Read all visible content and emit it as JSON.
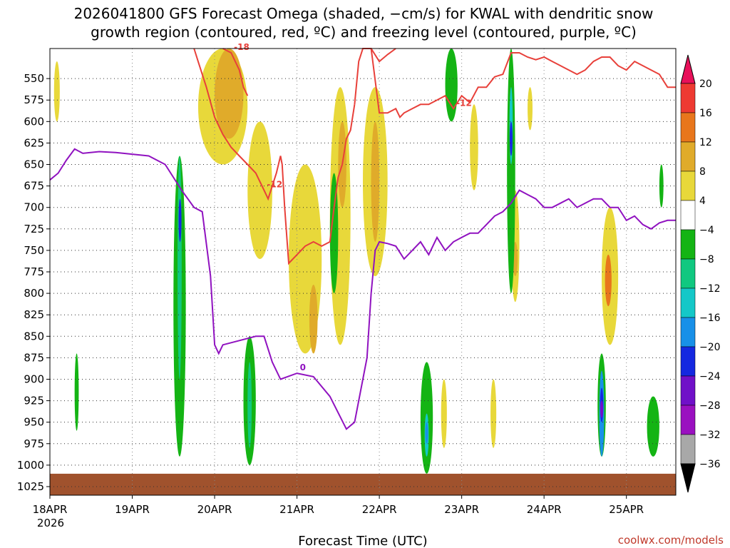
{
  "chart_data": {
    "type": "heatmap",
    "title_line1": "2026041800 GFS Forecast Omega (shaded, −cm/s) for KWAL with dendritic snow",
    "title_line2": "growth region (contoured, red, ºC) and freezing level (contoured, purple, ºC)",
    "xlabel": "Forecast Time (UTC)",
    "credit": "coolwx.com/models",
    "x_ticks": [
      "18APR",
      "19APR",
      "20APR",
      "21APR",
      "22APR",
      "23APR",
      "24APR",
      "25APR"
    ],
    "x_year": "2026",
    "xlim_days": [
      0,
      7.6
    ],
    "y_ticks": [
      550,
      575,
      600,
      625,
      650,
      675,
      700,
      725,
      750,
      775,
      800,
      825,
      850,
      875,
      900,
      925,
      950,
      975,
      1000,
      1025
    ],
    "ylim_hpa": [
      515,
      1035
    ],
    "colorbar": {
      "labels": [
        "20",
        "16",
        "12",
        "8",
        "4",
        "−4",
        "−8",
        "−12",
        "−16",
        "−20",
        "−24",
        "−28",
        "−32",
        "−36"
      ],
      "colors": [
        "#e8105a",
        "#ee3a32",
        "#e8761c",
        "#e0ab2a",
        "#e8d83a",
        "#ffffff",
        "#14b414",
        "#10c880",
        "#14c8c8",
        "#1890e8",
        "#1428e0",
        "#7010c8",
        "#9a10c0",
        "#a8a8a8",
        "#000000"
      ]
    },
    "series": [
      {
        "name": "freezing level 0ºC",
        "color": "#9012c0",
        "label": "0",
        "x": [
          0,
          0.1,
          0.2,
          0.3,
          0.4,
          0.6,
          0.8,
          1.0,
          1.2,
          1.4,
          1.6,
          1.75,
          1.85,
          1.95,
          2.0,
          2.05,
          2.1,
          2.3,
          2.5,
          2.6,
          2.7,
          2.8,
          3.0,
          3.2,
          3.4,
          3.6,
          3.7,
          3.8,
          3.85,
          3.9,
          3.95,
          4.0,
          4.1,
          4.2,
          4.3,
          4.5,
          4.6,
          4.7,
          4.8,
          4.9,
          5.0,
          5.1,
          5.2,
          5.3,
          5.4,
          5.5,
          5.6,
          5.7,
          5.8,
          5.9,
          6.0,
          6.1,
          6.2,
          6.3,
          6.4,
          6.5,
          6.6,
          6.7,
          6.8,
          6.9,
          7.0,
          7.1,
          7.2,
          7.3,
          7.4,
          7.5,
          7.6
        ],
        "values": [
          668,
          660,
          645,
          632,
          637,
          635,
          636,
          638,
          640,
          650,
          680,
          700,
          705,
          780,
          860,
          870,
          860,
          855,
          850,
          850,
          880,
          900,
          893,
          897,
          920,
          958,
          950,
          900,
          875,
          800,
          750,
          740,
          742,
          745,
          760,
          740,
          755,
          735,
          750,
          740,
          735,
          730,
          730,
          720,
          710,
          705,
          695,
          680,
          685,
          690,
          700,
          700,
          695,
          690,
          700,
          695,
          690,
          690,
          700,
          700,
          715,
          710,
          720,
          725,
          718,
          715,
          715
        ]
      },
      {
        "name": "dendritic growth left branch -12ºC",
        "color": "#e8403a",
        "label": "-12",
        "x": [
          1.75,
          1.8,
          1.9,
          2.0,
          2.1,
          2.2,
          2.3,
          2.4,
          2.5,
          2.6,
          2.65,
          2.75,
          2.8,
          2.82,
          2.85,
          2.9,
          3.0,
          3.1,
          3.2,
          3.3,
          3.4,
          3.45,
          3.5,
          3.55,
          3.6,
          3.65,
          3.7
        ],
        "values": [
          515,
          530,
          560,
          595,
          615,
          630,
          640,
          650,
          660,
          680,
          690,
          660,
          640,
          650,
          700,
          765,
          755,
          745,
          740,
          745,
          740,
          700,
          665,
          650,
          620,
          610,
          580
        ]
      },
      {
        "name": "dendritic growth upper branch -12ºC",
        "color": "#e8403a",
        "label": "-12",
        "x": [
          3.7,
          3.75,
          3.8,
          3.9,
          4.0,
          4.1,
          4.2,
          4.25,
          4.3,
          4.4,
          4.5,
          4.6,
          4.7,
          4.8,
          4.9,
          5.0,
          5.1,
          5.2,
          5.3,
          5.4,
          5.5,
          5.6,
          5.7,
          5.8,
          5.9,
          6.0,
          6.1,
          6.2,
          6.3,
          6.4,
          6.5,
          6.6,
          6.7,
          6.8,
          6.9,
          7.0,
          7.1,
          7.2,
          7.3,
          7.4,
          7.5,
          7.6
        ],
        "values": [
          580,
          530,
          515,
          515,
          590,
          590,
          585,
          595,
          590,
          585,
          580,
          580,
          575,
          570,
          585,
          570,
          578,
          560,
          560,
          548,
          545,
          520,
          520,
          525,
          528,
          525,
          530,
          535,
          540,
          545,
          540,
          530,
          525,
          525,
          535,
          540,
          530,
          535,
          540,
          545,
          560,
          560
        ]
      },
      {
        "name": "dendritic growth -18ºC",
        "color": "#e8403a",
        "label": "-18",
        "x": [
          2.1,
          2.2,
          2.3,
          2.35,
          2.4
        ],
        "values": [
          515,
          520,
          540,
          560,
          570
        ]
      },
      {
        "name": "dendritic growth small branch -12ºC",
        "color": "#e8403a",
        "label": "",
        "x": [
          3.9,
          4.0,
          4.1,
          4.2
        ],
        "values": [
          515,
          530,
          522,
          515
        ]
      }
    ],
    "omega_regions": [
      {
        "level": "4",
        "x0": 0.05,
        "x1": 0.12,
        "p0": 530,
        "p1": 600
      },
      {
        "level": "4",
        "x0": 1.8,
        "x1": 2.4,
        "p0": 515,
        "p1": 650
      },
      {
        "level": "8",
        "x0": 2.0,
        "x1": 2.35,
        "p0": 515,
        "p1": 620
      },
      {
        "level": "4",
        "x0": 2.4,
        "x1": 2.7,
        "p0": 600,
        "p1": 760
      },
      {
        "level": "4",
        "x0": 2.9,
        "x1": 3.3,
        "p0": 650,
        "p1": 870
      },
      {
        "level": "8",
        "x0": 3.15,
        "x1": 3.25,
        "p0": 790,
        "p1": 870
      },
      {
        "level": "4",
        "x0": 3.4,
        "x1": 3.65,
        "p0": 560,
        "p1": 860
      },
      {
        "level": "8",
        "x0": 3.5,
        "x1": 3.6,
        "p0": 600,
        "p1": 700
      },
      {
        "level": "4",
        "x0": 3.8,
        "x1": 4.1,
        "p0": 560,
        "p1": 780
      },
      {
        "level": "8",
        "x0": 3.9,
        "x1": 4.0,
        "p0": 600,
        "p1": 740
      },
      {
        "level": "4",
        "x0": 5.1,
        "x1": 5.2,
        "p0": 580,
        "p1": 680
      },
      {
        "level": "4",
        "x0": 5.6,
        "x1": 5.7,
        "p0": 680,
        "p1": 810
      },
      {
        "level": "8",
        "x0": 5.62,
        "x1": 5.68,
        "p0": 740,
        "p1": 780
      },
      {
        "level": "4",
        "x0": 5.8,
        "x1": 5.86,
        "p0": 560,
        "p1": 610
      },
      {
        "level": "4",
        "x0": 6.7,
        "x1": 6.9,
        "p0": 700,
        "p1": 860
      },
      {
        "level": "12",
        "x0": 6.74,
        "x1": 6.82,
        "p0": 755,
        "p1": 815
      },
      {
        "level": "4",
        "x0": 5.35,
        "x1": 5.42,
        "p0": 900,
        "p1": 980
      },
      {
        "level": "4",
        "x0": 4.75,
        "x1": 4.82,
        "p0": 900,
        "p1": 980
      },
      {
        "level": "-4",
        "x0": 1.5,
        "x1": 1.65,
        "p0": 640,
        "p1": 990
      },
      {
        "level": "-8",
        "x0": 1.55,
        "x1": 1.6,
        "p0": 640,
        "p1": 900
      },
      {
        "level": "-24",
        "x0": 1.57,
        "x1": 1.59,
        "p0": 690,
        "p1": 740
      },
      {
        "level": "-4",
        "x0": 0.3,
        "x1": 0.35,
        "p0": 870,
        "p1": 960
      },
      {
        "level": "-4",
        "x0": 2.35,
        "x1": 2.5,
        "p0": 850,
        "p1": 1000
      },
      {
        "level": "-8",
        "x0": 2.4,
        "x1": 2.45,
        "p0": 880,
        "p1": 980
      },
      {
        "level": "-4",
        "x0": 4.5,
        "x1": 4.65,
        "p0": 880,
        "p1": 1010
      },
      {
        "level": "-12",
        "x0": 4.55,
        "x1": 4.6,
        "p0": 940,
        "p1": 990
      },
      {
        "level": "-16",
        "x0": 4.56,
        "x1": 4.59,
        "p0": 950,
        "p1": 975
      },
      {
        "level": "-4",
        "x0": 5.55,
        "x1": 5.65,
        "p0": 515,
        "p1": 800
      },
      {
        "level": "-12",
        "x0": 5.58,
        "x1": 5.62,
        "p0": 560,
        "p1": 650
      },
      {
        "level": "-20",
        "x0": 5.59,
        "x1": 5.61,
        "p0": 600,
        "p1": 640
      },
      {
        "level": "-4",
        "x0": 6.65,
        "x1": 6.75,
        "p0": 870,
        "p1": 990
      },
      {
        "level": "-16",
        "x0": 6.67,
        "x1": 6.73,
        "p0": 890,
        "p1": 990
      },
      {
        "level": "-24",
        "x0": 6.68,
        "x1": 6.72,
        "p0": 910,
        "p1": 950
      },
      {
        "level": "-28",
        "x0": 6.69,
        "x1": 6.71,
        "p0": 925,
        "p1": 945
      },
      {
        "level": "-4",
        "x0": 7.25,
        "x1": 7.4,
        "p0": 920,
        "p1": 990
      },
      {
        "level": "-4",
        "x0": 7.4,
        "x1": 7.45,
        "p0": 650,
        "p1": 700
      },
      {
        "level": "-4",
        "x0": 3.4,
        "x1": 3.5,
        "p0": 660,
        "p1": 800
      },
      {
        "level": "-4",
        "x0": 4.8,
        "x1": 4.95,
        "p0": 515,
        "p1": 600
      }
    ]
  }
}
